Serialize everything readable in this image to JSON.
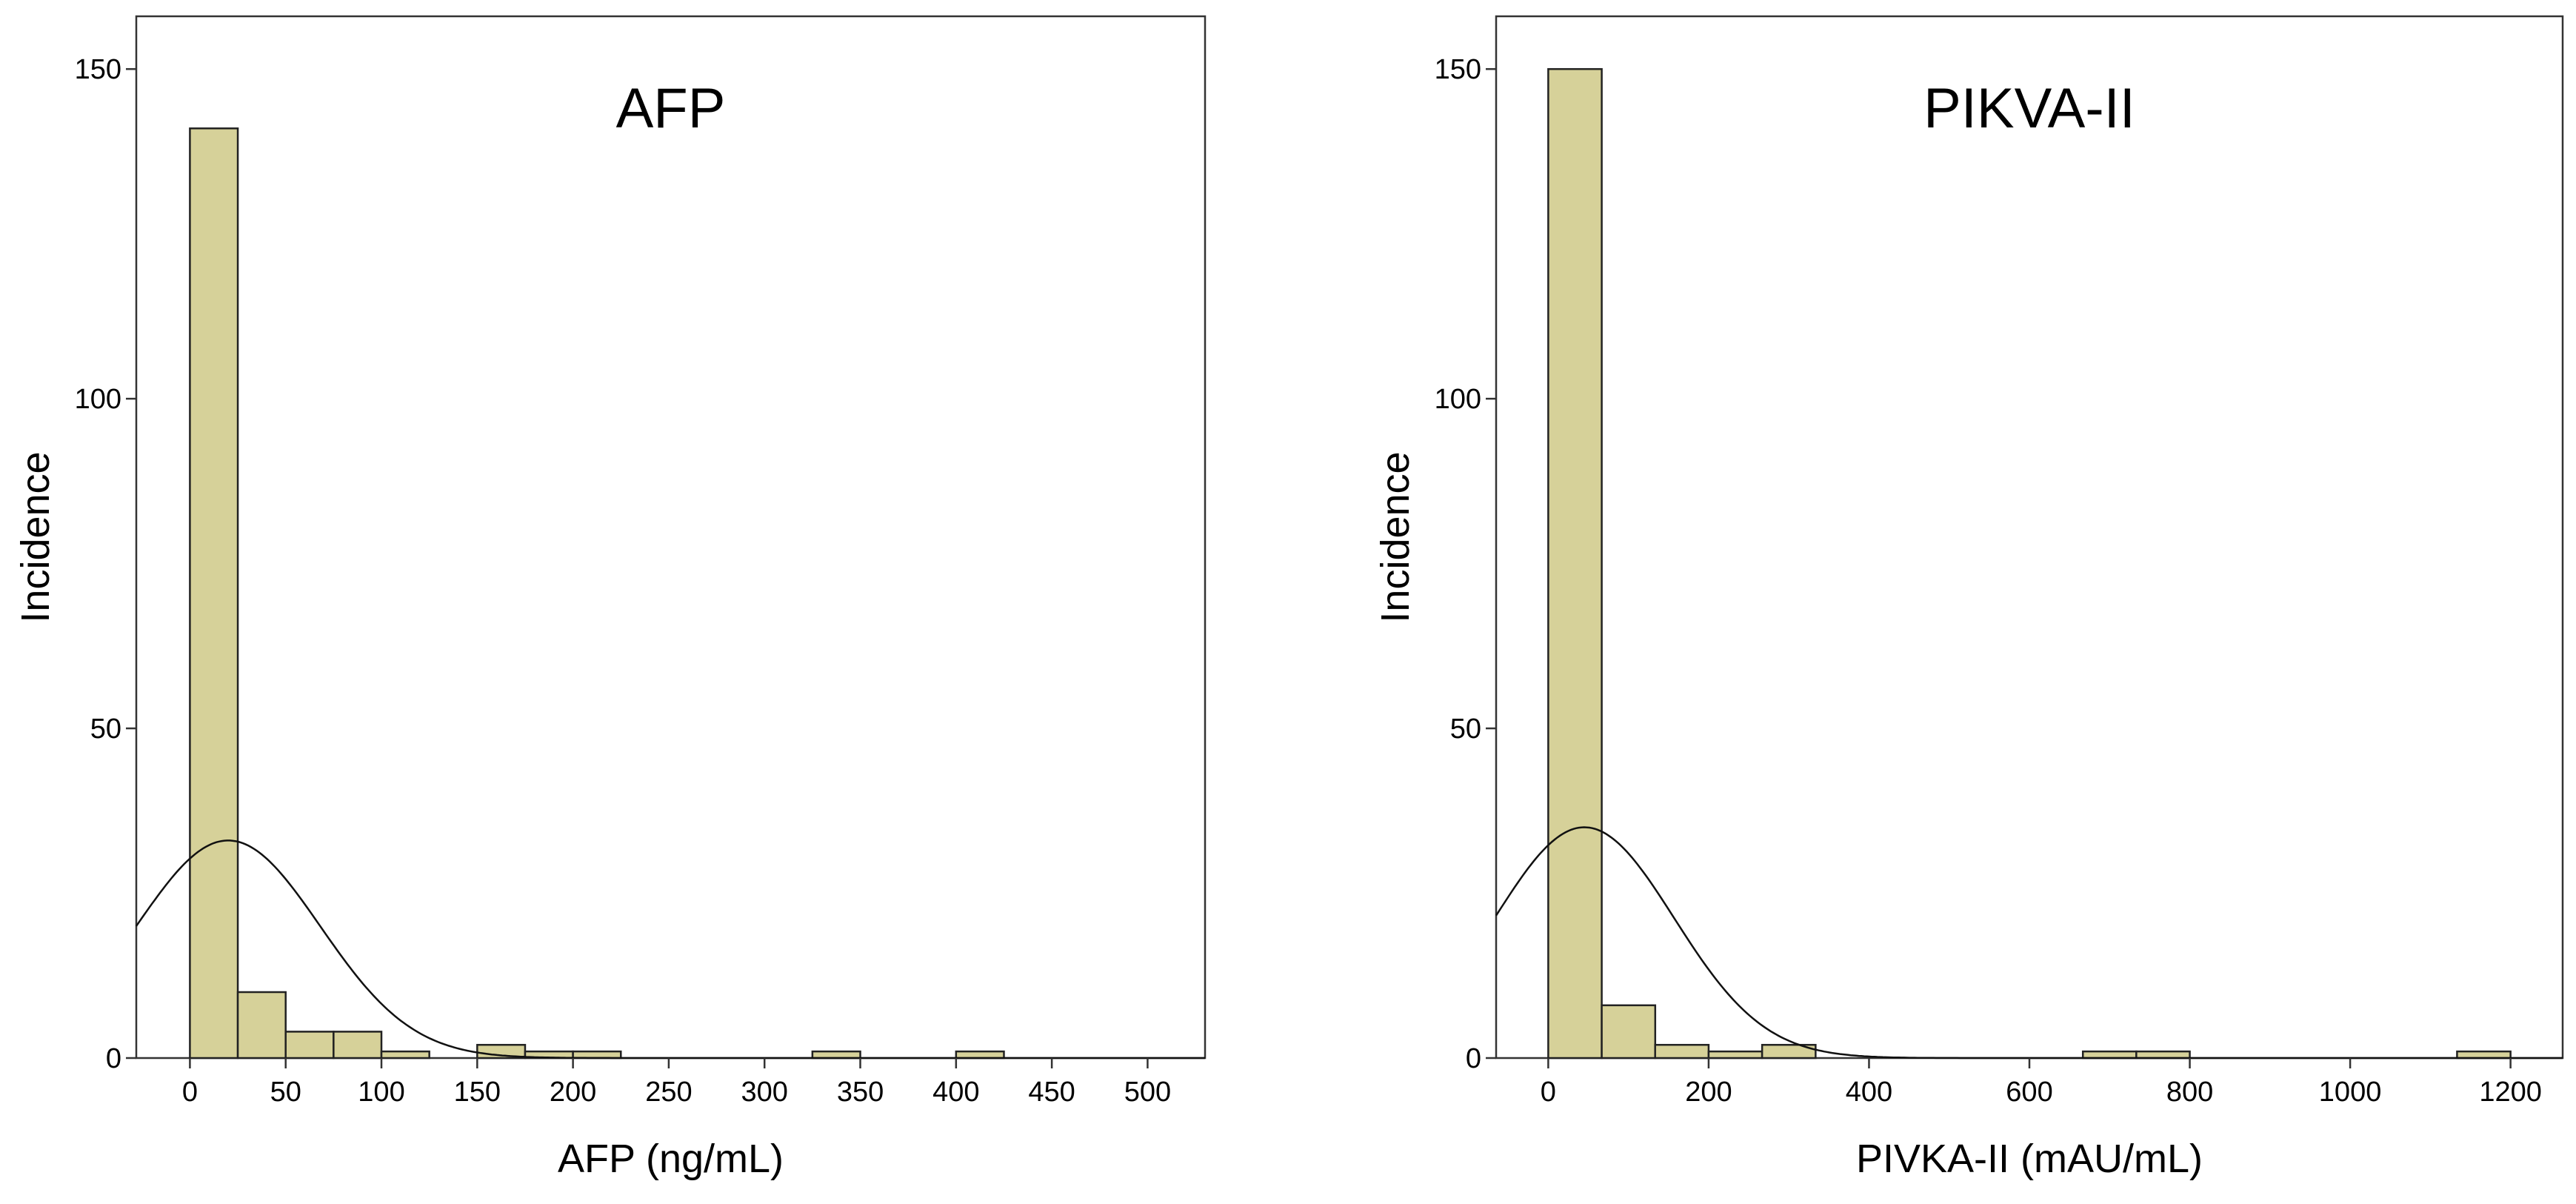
{
  "chart_data": [
    {
      "type": "bar",
      "title": "AFP",
      "xlabel": "AFP (ng/mL)",
      "ylabel": "Incidence",
      "xlim": [
        -28,
        530
      ],
      "ylim": [
        0,
        158
      ],
      "xticks": [
        0,
        50,
        100,
        150,
        200,
        250,
        300,
        350,
        400,
        450,
        500
      ],
      "yticks": [
        0,
        50,
        100,
        150
      ],
      "bin_width": 25,
      "bin_starts": [
        0,
        25,
        50,
        75,
        100,
        150,
        175,
        200,
        325,
        400
      ],
      "values": [
        141,
        10,
        4,
        4,
        1,
        2,
        1,
        1,
        1,
        1
      ],
      "normal_curve": {
        "mean": 20,
        "sd": 48,
        "peak": 33
      },
      "grid": false,
      "legend": "none"
    },
    {
      "type": "bar",
      "title": "PIKVA-II",
      "xlabel": "PIVKA-II (mAU/mL)",
      "ylabel": "Incidence",
      "xlim": [
        -65,
        1265
      ],
      "ylim": [
        0,
        158
      ],
      "xticks": [
        0,
        200,
        400,
        600,
        800,
        1000,
        1200
      ],
      "yticks": [
        0,
        50,
        100,
        150
      ],
      "bin_width": 66.7,
      "bin_starts": [
        0,
        66.7,
        133.3,
        200,
        266.7,
        666.7,
        733.3,
        1133.3
      ],
      "values": [
        150,
        8,
        2,
        1,
        2,
        1,
        1,
        1
      ],
      "normal_curve": {
        "mean": 45,
        "sd": 112,
        "peak": 35
      },
      "grid": false,
      "legend": "none"
    }
  ]
}
